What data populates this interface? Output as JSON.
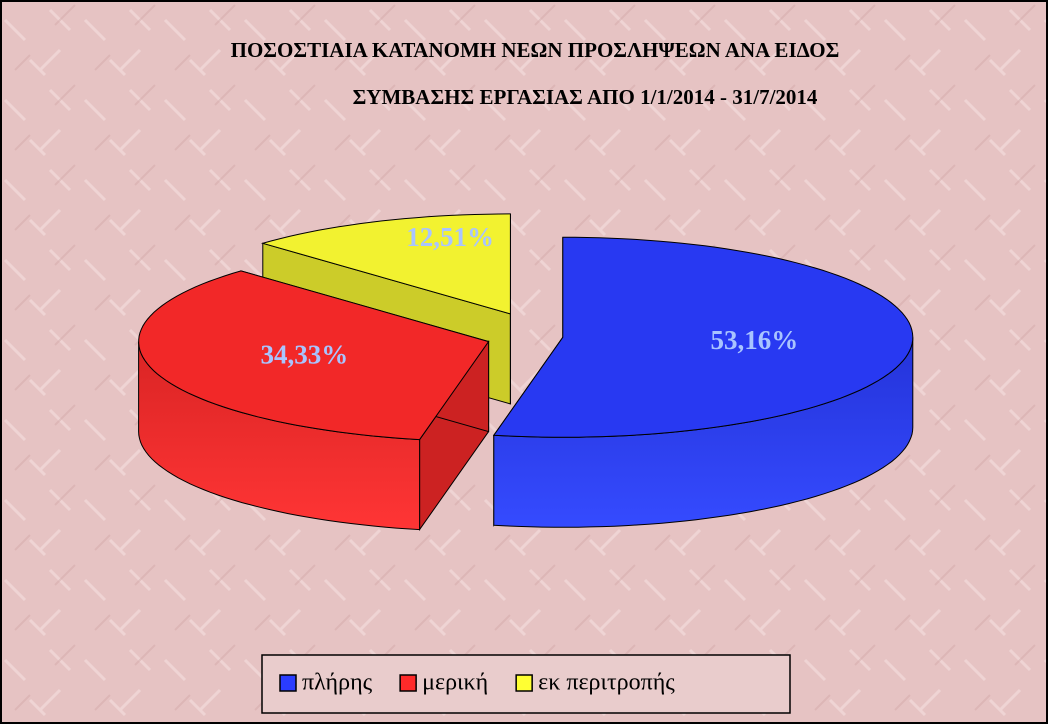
{
  "chart_data": {
    "type": "pie3d",
    "title": [
      "ΠΟΣΟΣΤΙΑΙΑ ΚΑΤΑΝΟΜΗ ΝΕΩΝ ΠΡΟΣΛΗΨΕΩΝ ΑΝΑ ΕΙΔΟΣ",
      "ΣΥΜΒΑΣΗΣ ΕΡΓΑΣΙΑΣ ΑΠΟ 1/1/2014 - 31/7/2014"
    ],
    "categories": [
      "πλήρης",
      "μερική",
      "εκ περιτροπής"
    ],
    "values": [
      53.16,
      34.33,
      12.51
    ],
    "value_labels": [
      "53,16%",
      "34,33%",
      "12,51%"
    ],
    "colors": [
      "#2a3cff",
      "#ff2a2a",
      "#ffff33"
    ],
    "legend": "bottom"
  }
}
